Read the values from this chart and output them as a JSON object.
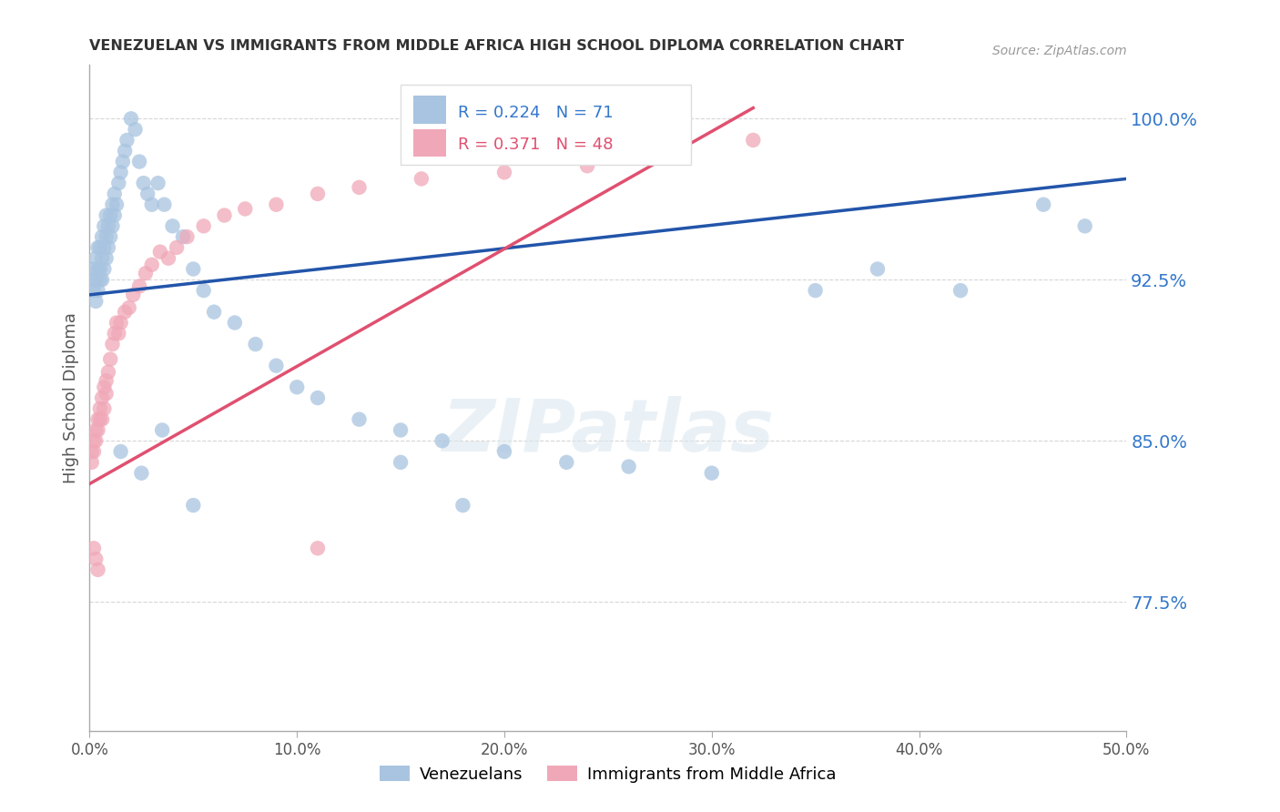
{
  "title": "VENEZUELAN VS IMMIGRANTS FROM MIDDLE AFRICA HIGH SCHOOL DIPLOMA CORRELATION CHART",
  "source": "Source: ZipAtlas.com",
  "ylabel": "High School Diploma",
  "xlim": [
    0.0,
    0.5
  ],
  "ylim": [
    0.715,
    1.025
  ],
  "yticks": [
    0.775,
    0.85,
    0.925,
    1.0
  ],
  "ytick_labels": [
    "77.5%",
    "85.0%",
    "92.5%",
    "100.0%"
  ],
  "xticks": [
    0.0,
    0.1,
    0.2,
    0.3,
    0.4,
    0.5
  ],
  "xtick_labels": [
    "0.0%",
    "10.0%",
    "20.0%",
    "30.0%",
    "40.0%",
    "50.0%"
  ],
  "blue_R": 0.224,
  "blue_N": 71,
  "pink_R": 0.371,
  "pink_N": 48,
  "blue_color": "#a8c4e0",
  "pink_color": "#f0a8b8",
  "blue_line_color": "#2255aa",
  "pink_line_color": "#e05070",
  "legend_label_blue": "Venezuelans",
  "legend_label_pink": "Immigrants from Middle Africa",
  "watermark": "ZIPatlas",
  "blue_x": [
    0.001,
    0.002,
    0.002,
    0.003,
    0.003,
    0.003,
    0.004,
    0.004,
    0.004,
    0.005,
    0.005,
    0.005,
    0.006,
    0.006,
    0.006,
    0.007,
    0.007,
    0.007,
    0.008,
    0.008,
    0.008,
    0.009,
    0.009,
    0.01,
    0.01,
    0.011,
    0.011,
    0.012,
    0.012,
    0.013,
    0.014,
    0.015,
    0.016,
    0.017,
    0.018,
    0.02,
    0.022,
    0.024,
    0.026,
    0.028,
    0.03,
    0.033,
    0.036,
    0.04,
    0.045,
    0.05,
    0.055,
    0.06,
    0.07,
    0.08,
    0.09,
    0.1,
    0.11,
    0.13,
    0.15,
    0.17,
    0.2,
    0.23,
    0.26,
    0.3,
    0.35,
    0.38,
    0.42,
    0.46,
    0.48,
    0.15,
    0.18,
    0.05,
    0.025,
    0.015,
    0.035
  ],
  "blue_y": [
    0.925,
    0.92,
    0.93,
    0.915,
    0.925,
    0.935,
    0.92,
    0.93,
    0.94,
    0.925,
    0.93,
    0.94,
    0.935,
    0.925,
    0.945,
    0.93,
    0.94,
    0.95,
    0.935,
    0.945,
    0.955,
    0.94,
    0.95,
    0.945,
    0.955,
    0.95,
    0.96,
    0.955,
    0.965,
    0.96,
    0.97,
    0.975,
    0.98,
    0.985,
    0.99,
    1.0,
    0.995,
    0.98,
    0.97,
    0.965,
    0.96,
    0.97,
    0.96,
    0.95,
    0.945,
    0.93,
    0.92,
    0.91,
    0.905,
    0.895,
    0.885,
    0.875,
    0.87,
    0.86,
    0.855,
    0.85,
    0.845,
    0.84,
    0.838,
    0.835,
    0.92,
    0.93,
    0.92,
    0.96,
    0.95,
    0.84,
    0.82,
    0.82,
    0.835,
    0.845,
    0.855
  ],
  "pink_x": [
    0.001,
    0.001,
    0.002,
    0.002,
    0.003,
    0.003,
    0.004,
    0.004,
    0.005,
    0.005,
    0.006,
    0.006,
    0.007,
    0.007,
    0.008,
    0.008,
    0.009,
    0.01,
    0.011,
    0.012,
    0.013,
    0.014,
    0.015,
    0.017,
    0.019,
    0.021,
    0.024,
    0.027,
    0.03,
    0.034,
    0.038,
    0.042,
    0.047,
    0.055,
    0.065,
    0.075,
    0.09,
    0.11,
    0.13,
    0.16,
    0.2,
    0.24,
    0.28,
    0.32,
    0.002,
    0.003,
    0.004,
    0.11
  ],
  "pink_y": [
    0.845,
    0.84,
    0.85,
    0.845,
    0.855,
    0.85,
    0.86,
    0.855,
    0.865,
    0.86,
    0.87,
    0.86,
    0.875,
    0.865,
    0.878,
    0.872,
    0.882,
    0.888,
    0.895,
    0.9,
    0.905,
    0.9,
    0.905,
    0.91,
    0.912,
    0.918,
    0.922,
    0.928,
    0.932,
    0.938,
    0.935,
    0.94,
    0.945,
    0.95,
    0.955,
    0.958,
    0.96,
    0.965,
    0.968,
    0.972,
    0.975,
    0.978,
    0.982,
    0.99,
    0.8,
    0.795,
    0.79,
    0.8
  ],
  "background_color": "#ffffff",
  "grid_color": "#cccccc",
  "blue_trend_x0": 0.0,
  "blue_trend_y0": 0.918,
  "blue_trend_x1": 0.5,
  "blue_trend_y1": 0.972,
  "pink_trend_x0": 0.0,
  "pink_trend_y0": 0.83,
  "pink_trend_x1": 0.32,
  "pink_trend_y1": 1.005
}
